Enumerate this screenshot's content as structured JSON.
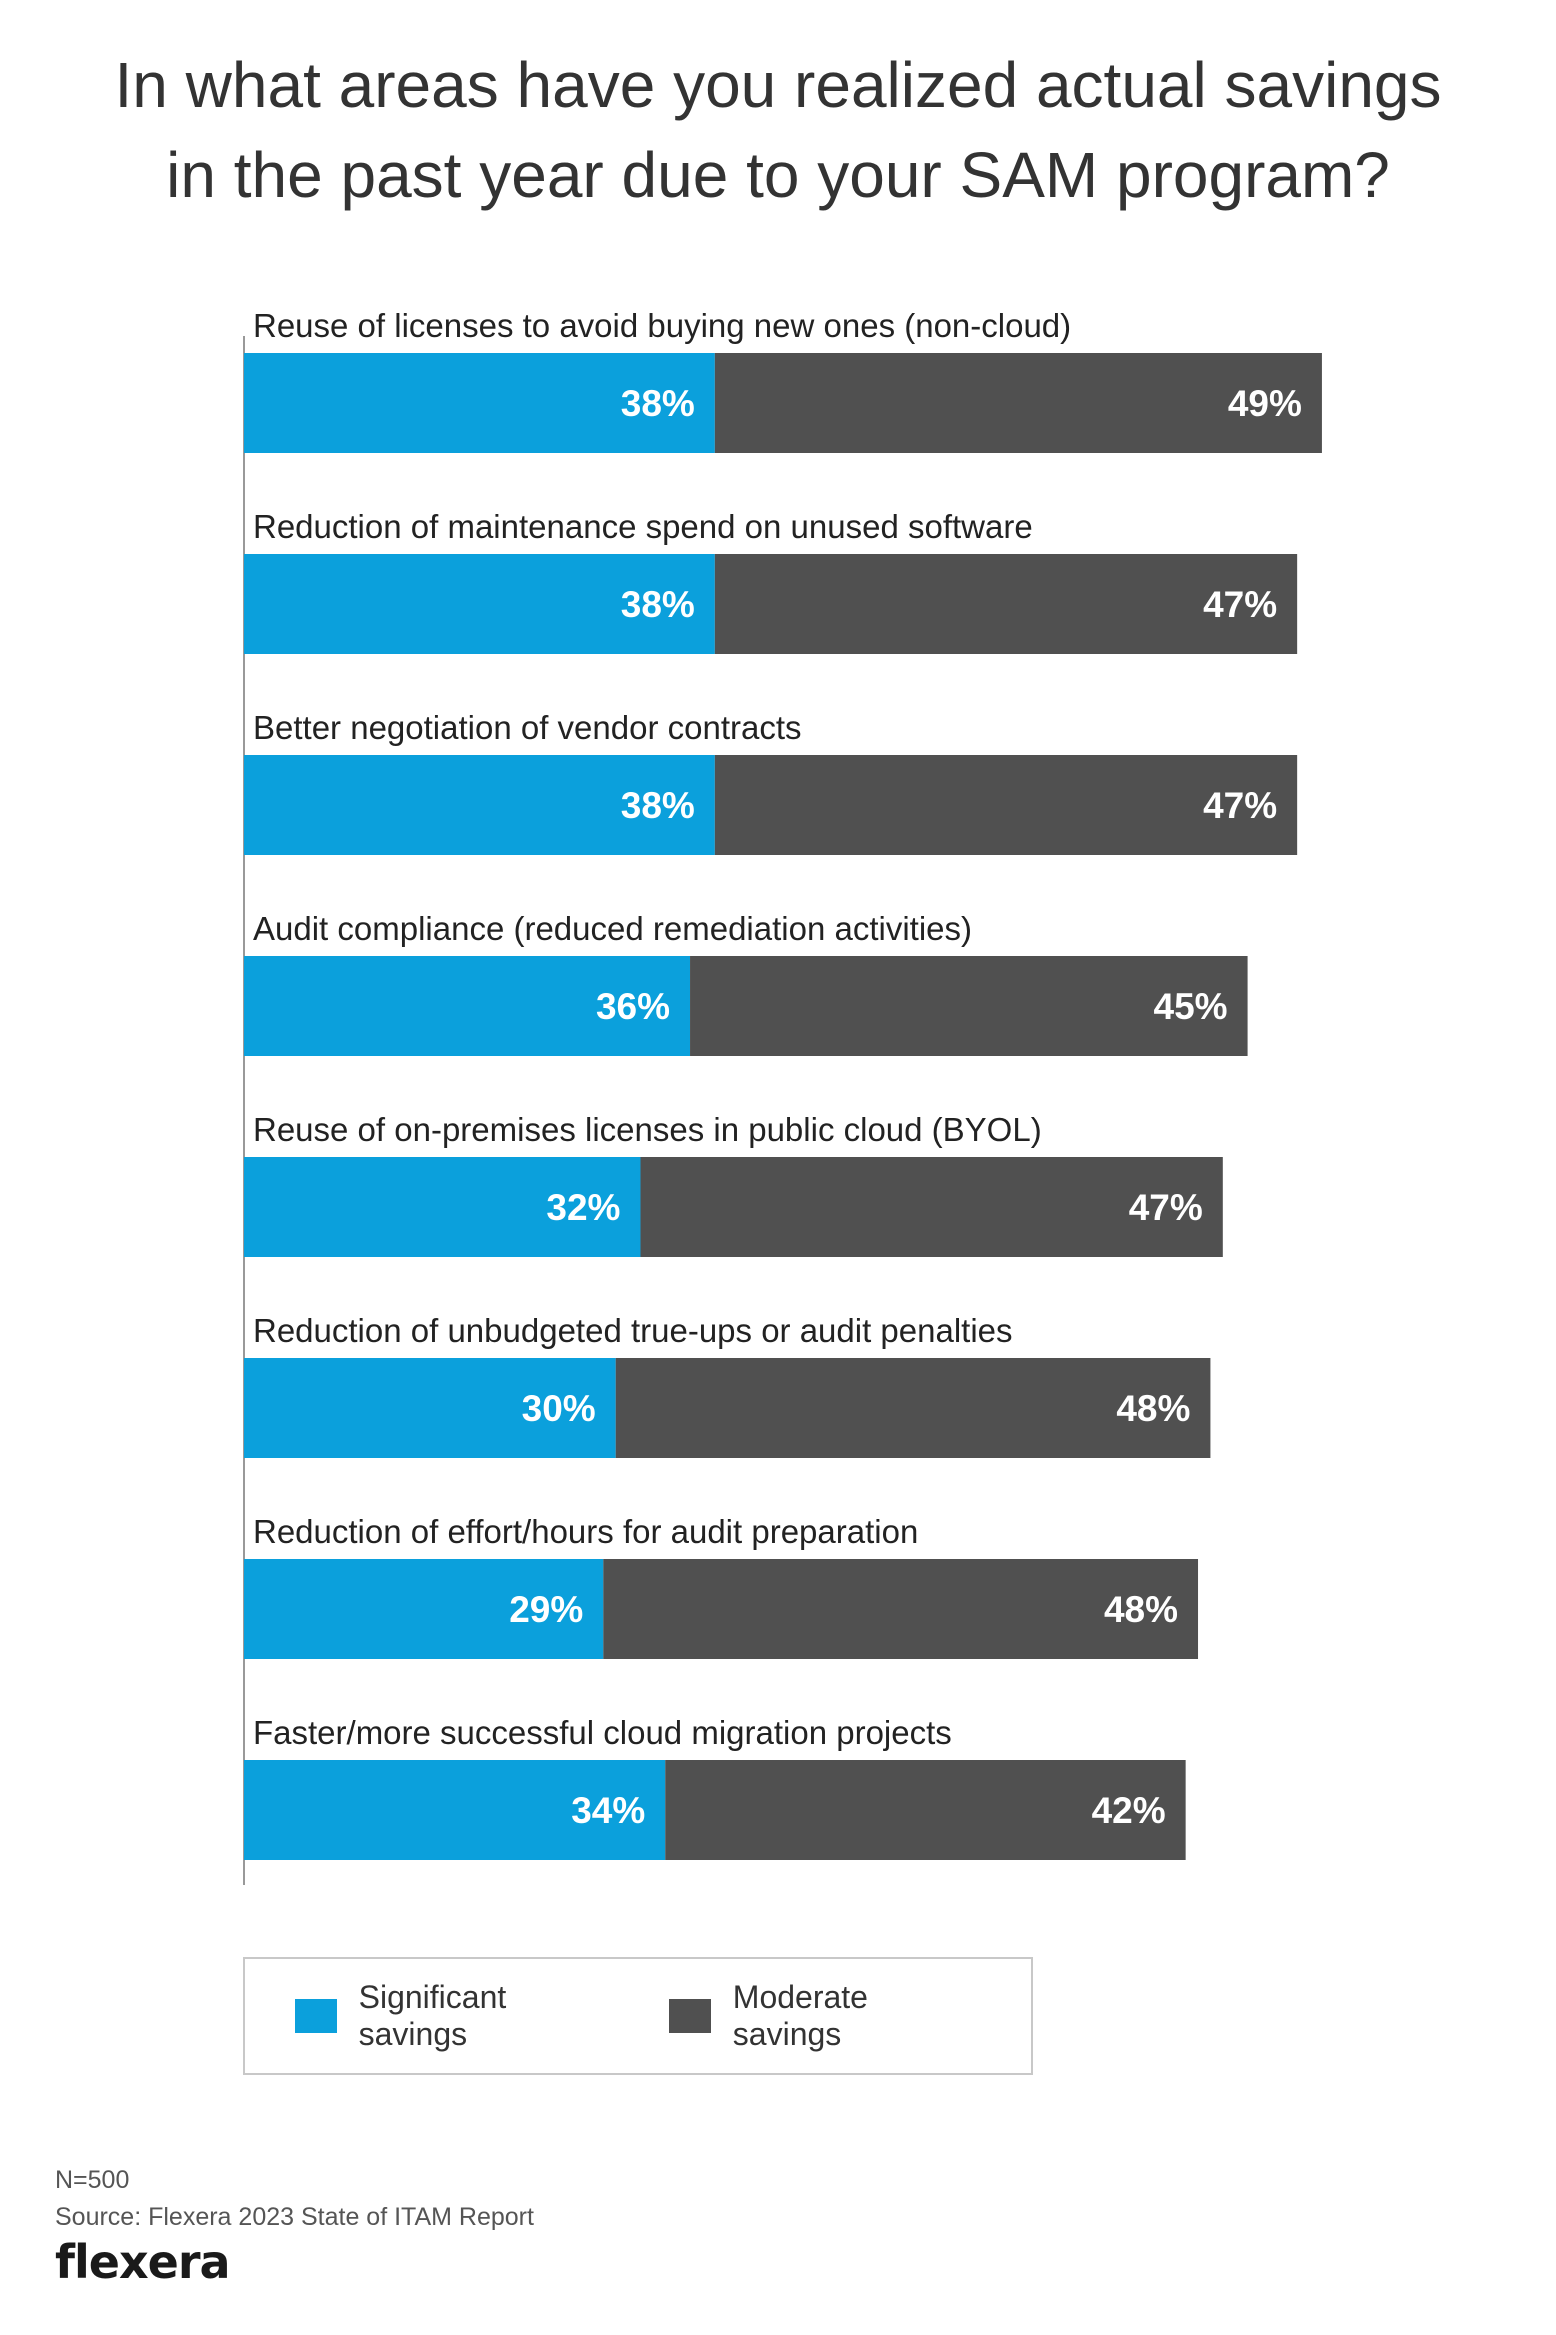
{
  "title_line1": "In what areas have you realized actual savings",
  "title_line2": "in the past year due to your SAM program?",
  "chart_data": {
    "type": "bar",
    "orientation": "horizontal",
    "stacked": true,
    "title": "In what areas have you realized actual savings in the past year due to your SAM program?",
    "categories": [
      "Reuse of licenses to avoid buying new ones (non-cloud)",
      "Reduction of maintenance spend on unused software",
      "Better negotiation of vendor contracts",
      "Audit compliance (reduced remediation activities)",
      "Reuse of on-premises licenses in public cloud (BYOL)",
      "Reduction of unbudgeted true-ups or audit penalties",
      "Reduction of effort/hours for audit preparation",
      "Faster/more successful cloud migration projects"
    ],
    "series": [
      {
        "name": "Significant savings",
        "color": "#0ba0dc",
        "values": [
          38,
          38,
          38,
          36,
          32,
          30,
          29,
          34
        ],
        "labels": [
          "38%",
          "38%",
          "38%",
          "36%",
          "32%",
          "30%",
          "29%",
          "34%"
        ]
      },
      {
        "name": "Moderate savings",
        "color": "#505050",
        "values": [
          49,
          47,
          47,
          45,
          47,
          48,
          48,
          42
        ],
        "labels": [
          "49%",
          "47%",
          "47%",
          "45%",
          "47%",
          "48%",
          "48%",
          "42%"
        ]
      }
    ],
    "xlim": [
      0,
      100
    ],
    "legend_position": "bottom"
  },
  "legend": {
    "items": [
      {
        "label": "Significant savings",
        "color": "#0ba0dc"
      },
      {
        "label": "Moderate savings",
        "color": "#505050"
      }
    ]
  },
  "footer": {
    "n": "N=500",
    "source": "Source: Flexera 2023 State of ITAM Report"
  },
  "logo_text": "flexera"
}
